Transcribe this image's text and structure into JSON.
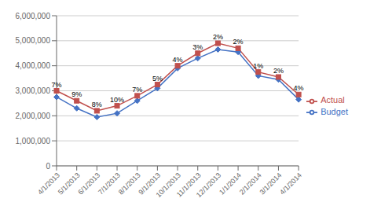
{
  "chart_data": {
    "type": "line",
    "categories": [
      "4/1/2013",
      "5/1/2013",
      "6/1/2013",
      "7/1/2013",
      "8/1/2013",
      "9/1/2013",
      "10/1/2013",
      "11/1/2013",
      "12/1/2013",
      "1/1/2014",
      "2/1/2014",
      "3/1/2014",
      "4/1/2014"
    ],
    "series": [
      {
        "name": "Budget",
        "color": "#4472c4",
        "marker": "diamond",
        "values": [
          2750000,
          2300000,
          1950000,
          2100000,
          2600000,
          3100000,
          3900000,
          4300000,
          4650000,
          4550000,
          3600000,
          3450000,
          2650000
        ]
      },
      {
        "name": "Actual",
        "color": "#c0504d",
        "marker": "square",
        "values": [
          3000000,
          2600000,
          2200000,
          2400000,
          2800000,
          3250000,
          4000000,
          4500000,
          4900000,
          4700000,
          3750000,
          3550000,
          2850000
        ]
      }
    ],
    "annotations": [
      {
        "series": "Actual",
        "x": "4/1/2013",
        "text": "7%"
      },
      {
        "series": "Actual",
        "x": "5/1/2013",
        "text": "9%"
      },
      {
        "series": "Actual",
        "x": "6/1/2013",
        "text": "8%"
      },
      {
        "series": "Actual",
        "x": "7/1/2013",
        "text": "10%"
      },
      {
        "series": "Actual",
        "x": "8/1/2013",
        "text": "7%"
      },
      {
        "series": "Actual",
        "x": "9/1/2013",
        "text": "5%"
      },
      {
        "series": "Actual",
        "x": "10/1/2013",
        "text": "4%"
      },
      {
        "series": "Actual",
        "x": "11/1/2013",
        "text": "3%"
      },
      {
        "series": "Actual",
        "x": "12/1/2013",
        "text": "2%"
      },
      {
        "series": "Actual",
        "x": "1/1/2014",
        "text": "2%"
      },
      {
        "series": "Actual",
        "x": "2/1/2014",
        "text": "1%"
      },
      {
        "series": "Actual",
        "x": "3/1/2014",
        "text": "2%"
      },
      {
        "series": "Actual",
        "x": "4/1/2014",
        "text": "4%"
      }
    ],
    "ylim": [
      0,
      6000000
    ],
    "yticks": [
      0,
      {
        "value": 1000000,
        "label": "1,000,000"
      },
      {
        "value": 2000000,
        "label": "2,000,000"
      },
      {
        "value": 3000000,
        "label": "3,000,000"
      },
      {
        "value": 4000000,
        "label": "4,000,000"
      },
      {
        "value": 5000000,
        "label": "5,000,000"
      },
      {
        "value": 6000000,
        "label": "6,000,000"
      }
    ],
    "grid": true,
    "legend": "right"
  }
}
